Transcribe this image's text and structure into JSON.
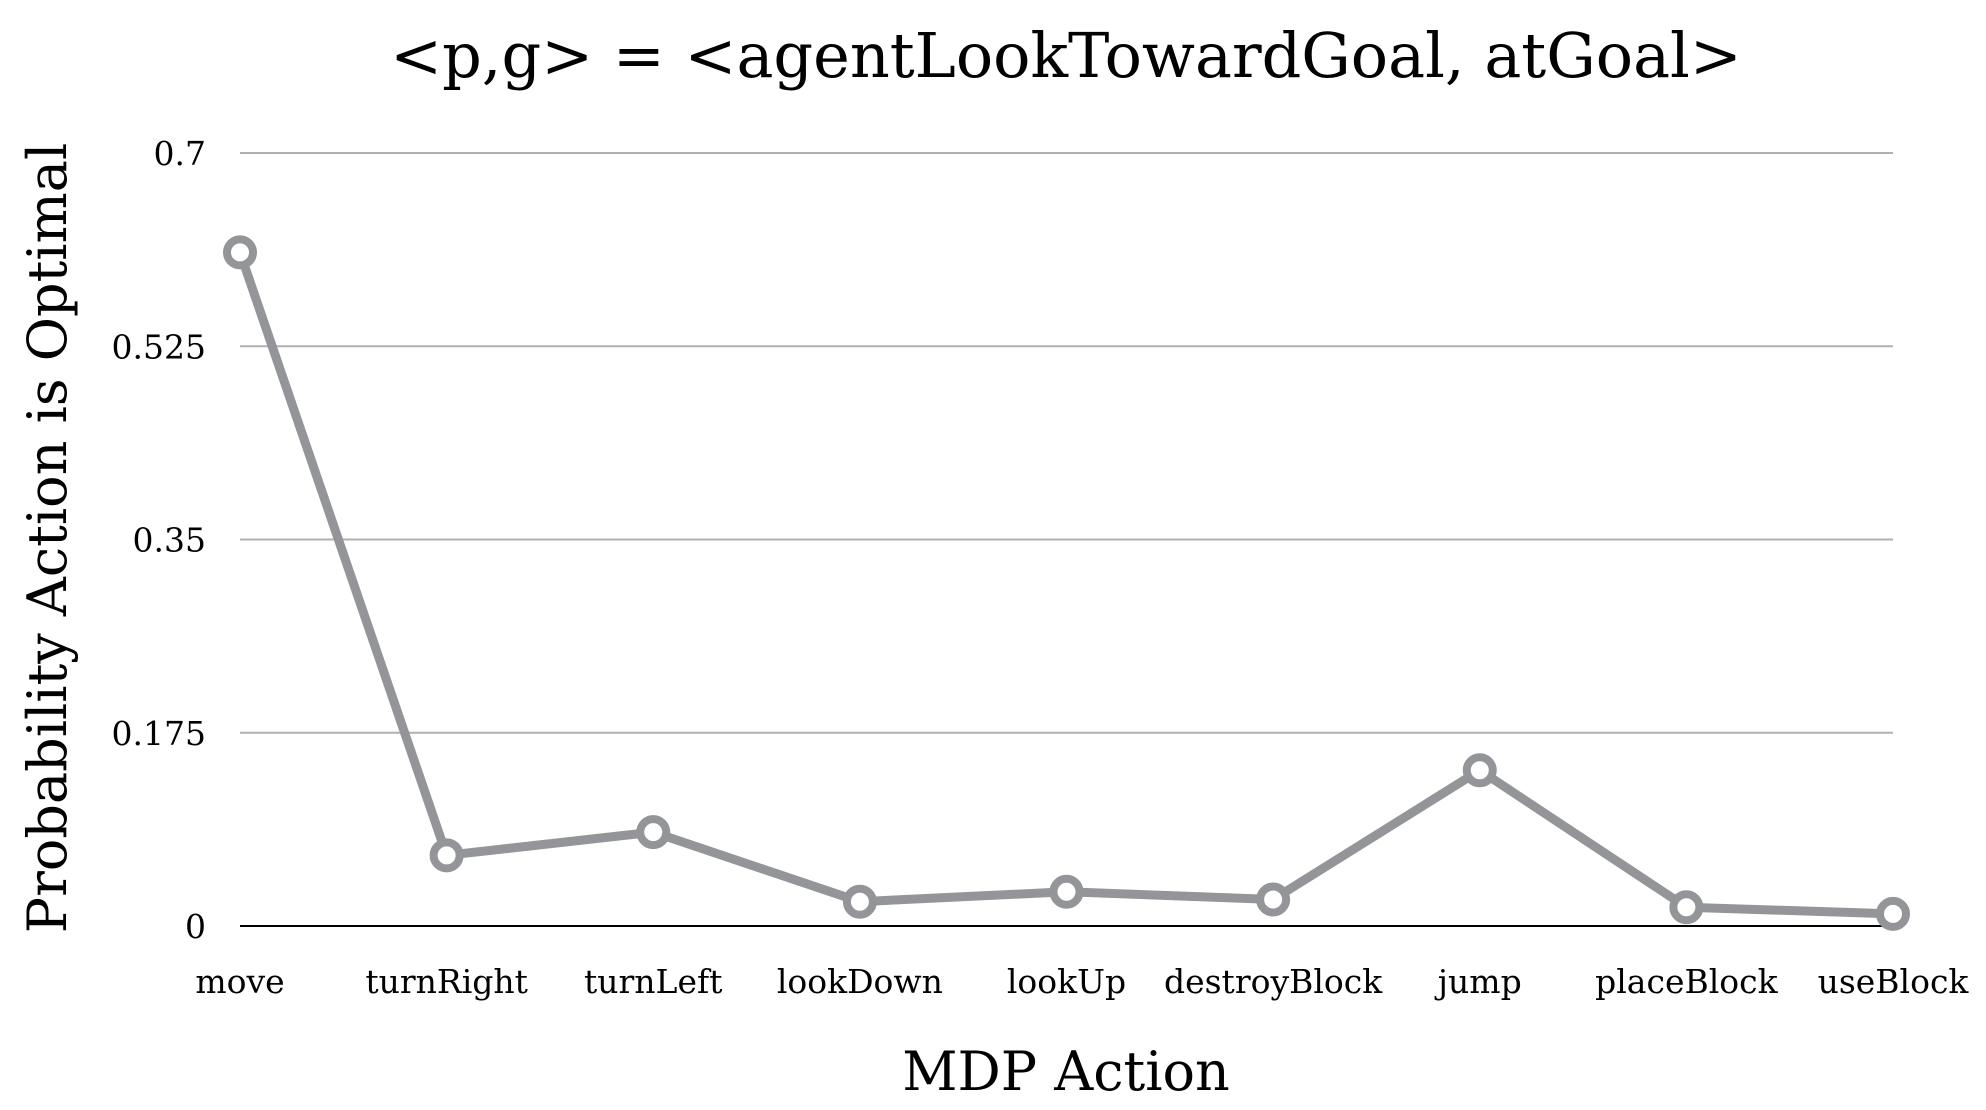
{
  "chart_data": {
    "type": "line",
    "title": "<p,g> = <agentLookTowardGoal, atGoal>",
    "xlabel": "MDP Action",
    "ylabel": "Probability Action is Optimal",
    "categories": [
      "move",
      "turnRight",
      "turnLeft",
      "lookDown",
      "lookUp",
      "destroyBlock",
      "jump",
      "placeBlock",
      "useBlock"
    ],
    "series": [
      {
        "values": [
          0.61,
          0.064,
          0.085,
          0.022,
          0.031,
          0.024,
          0.141,
          0.017,
          0.011
        ]
      }
    ],
    "ylim": [
      0,
      0.7
    ],
    "yticks": [
      "0",
      "0.175",
      "0.35",
      "0.525",
      "0.7"
    ],
    "grid": true,
    "legend": "none",
    "colors": {
      "series": "#939598",
      "grid": "#b0b0b0",
      "baseline": "#000000"
    }
  }
}
